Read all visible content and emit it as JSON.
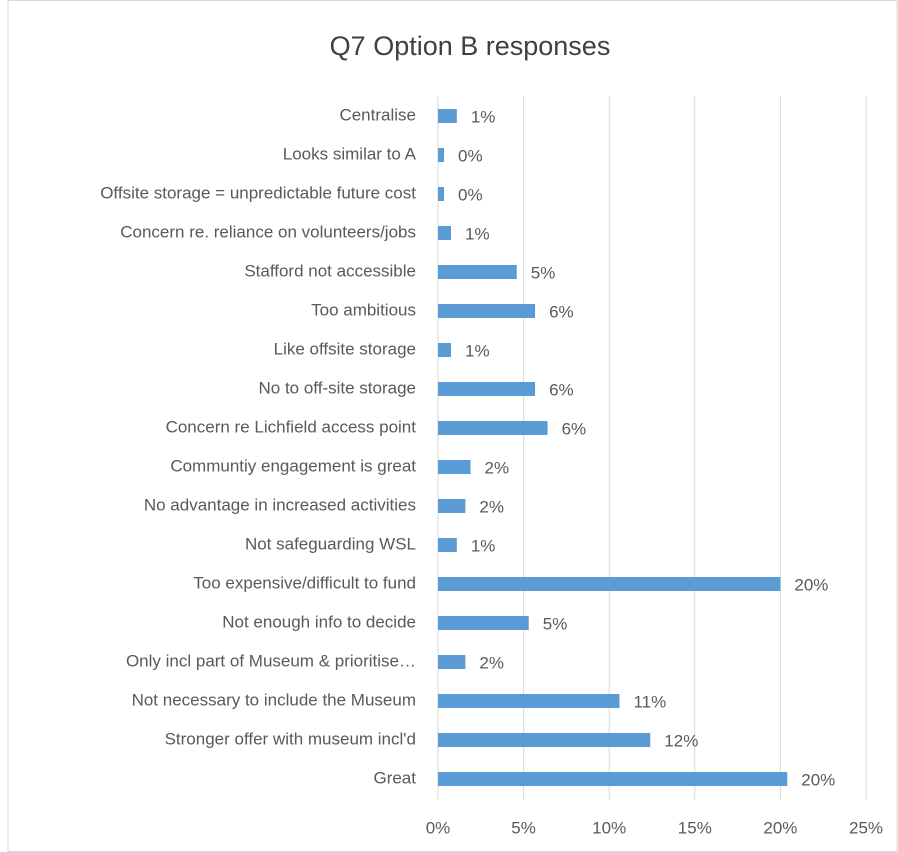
{
  "chart_data": {
    "type": "hbar",
    "title": "Q7 Option B responses",
    "categories": [
      "Centralise",
      "Looks similar to A",
      "Offsite storage = unpredictable future cost",
      "Concern re. reliance on volunteers/jobs",
      "Stafford not accessible",
      "Too ambitious",
      "Like offsite storage",
      "No to off-site storage",
      "Concern re Lichfield access point",
      "Communtiy engagement is great",
      "No advantage in increased activities",
      "Not safeguarding WSL",
      "Too expensive/difficult to fund",
      "Not enough info to decide",
      "Only incl part of Museum & prioritise…",
      "Not necessary to include the Museum",
      "Stronger offer with museum incl'd",
      "Great"
    ],
    "values": [
      1.1,
      0.35,
      0.35,
      0.76,
      4.6,
      5.67,
      0.76,
      5.67,
      6.4,
      1.9,
      1.6,
      1.1,
      20.0,
      5.3,
      1.6,
      10.6,
      12.4,
      20.4
    ],
    "value_labels": [
      "1%",
      "0%",
      "0%",
      "1%",
      "5%",
      "6%",
      "1%",
      "6%",
      "6%",
      "2%",
      "2%",
      "1%",
      "20%",
      "5%",
      "2%",
      "11%",
      "12%",
      "20%"
    ],
    "color": "#5b9bd5",
    "xlim": [
      0,
      25
    ],
    "xticks": [
      {
        "value": 0,
        "label": "0%"
      },
      {
        "value": 5,
        "label": "5%"
      },
      {
        "value": 10,
        "label": "10%"
      },
      {
        "value": 15,
        "label": "15%"
      },
      {
        "value": 20,
        "label": "20%"
      },
      {
        "value": 25,
        "label": "25%"
      }
    ],
    "grid": true
  }
}
